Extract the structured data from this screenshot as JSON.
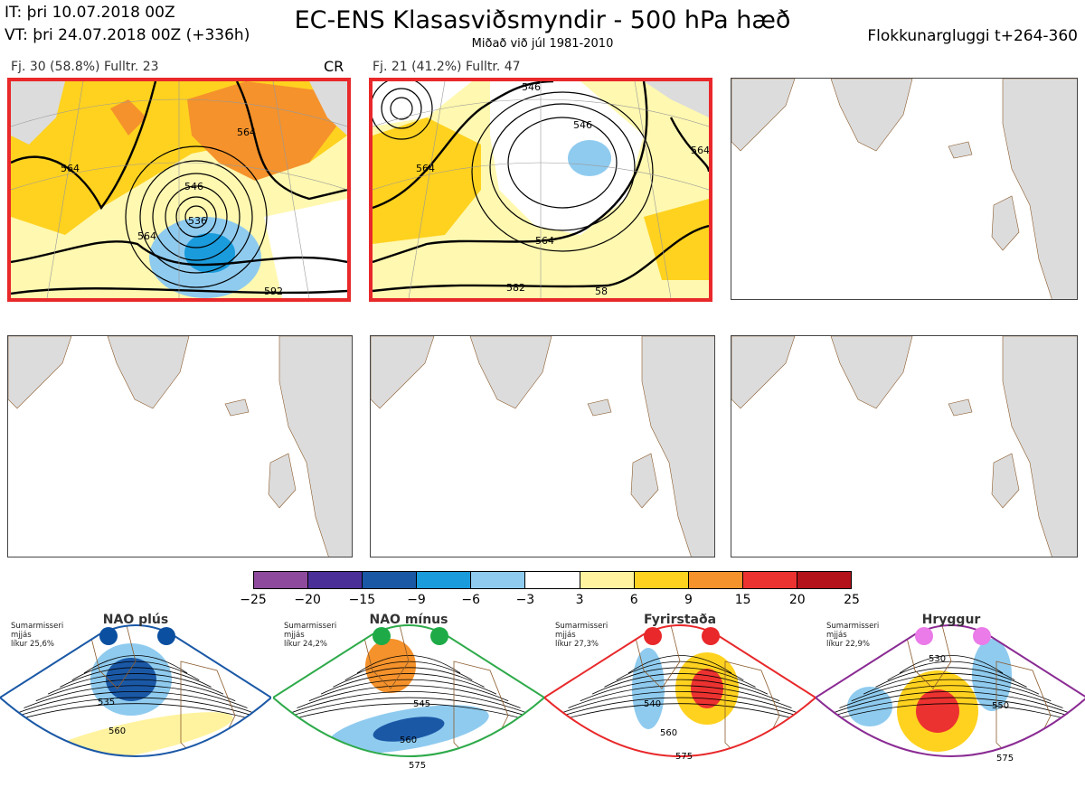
{
  "header": {
    "it": "IT: þri 10.07.2018 00Z",
    "vt": "VT: þri 24.07.2018 00Z  (+336h)",
    "title": "EC-ENS Klasasviðsmyndir - 500 hPa hæð",
    "subtitle": "Miðað við júl 1981-2010",
    "window": "Flokkunargluggi t+264-360"
  },
  "panels": [
    {
      "label": "Fj. 30 (58.8%)   Fulltr. 23",
      "tag": "CR",
      "highlighted": true,
      "contours": [
        "564",
        "546",
        "536",
        "564",
        "564",
        "592"
      ]
    },
    {
      "label": "Fj. 21 (41.2%)   Fulltr. 47",
      "tag": "",
      "highlighted": true,
      "contours": [
        "546",
        "546",
        "564",
        "564",
        "564",
        "582",
        "58"
      ]
    },
    {
      "label": "",
      "tag": "",
      "highlighted": false
    },
    {
      "label": "",
      "tag": "",
      "highlighted": false
    },
    {
      "label": "",
      "tag": "",
      "highlighted": false
    },
    {
      "label": "",
      "tag": "",
      "highlighted": false
    }
  ],
  "colorbar": {
    "colors": [
      "#8e4a9c",
      "#4b2f99",
      "#1a58a6",
      "#1a9bdc",
      "#8fcbef",
      "#ffffff",
      "#fff3a0",
      "#ffd21f",
      "#f5922b",
      "#ec3230",
      "#b3121b"
    ],
    "ticks": [
      "−25",
      "−20",
      "−15",
      "−9",
      "−6",
      "−3",
      "3",
      "6",
      "9",
      "15",
      "20",
      "25"
    ]
  },
  "regimes": [
    {
      "name": "NAO plús",
      "info": [
        "Sumarmisseri",
        "mjjás",
        "líkur 25,6%"
      ],
      "frame": "#1a58a6",
      "dot": "#0b4fa0",
      "contours": [
        "535",
        "560"
      ]
    },
    {
      "name": "NAO mínus",
      "info": [
        "Sumarmisseri",
        "mjjás",
        "líkur 24,2%"
      ],
      "frame": "#2eaa4a",
      "dot": "#1eab47",
      "contours": [
        "545",
        "560",
        "575"
      ]
    },
    {
      "name": "Fyrirstaða",
      "info": [
        "Sumarmisseri",
        "mjjás",
        "líkur 27,3%"
      ],
      "frame": "#e8282a",
      "dot": "#e8282a",
      "contours": [
        "540",
        "560",
        "575"
      ]
    },
    {
      "name": "Hryggur",
      "info": [
        "Sumarmisseri",
        "mjjás",
        "líkur 22,9%"
      ],
      "frame": "#8a2b93",
      "dot": "#ea7be8",
      "contours": [
        "530",
        "550",
        "575"
      ]
    }
  ]
}
